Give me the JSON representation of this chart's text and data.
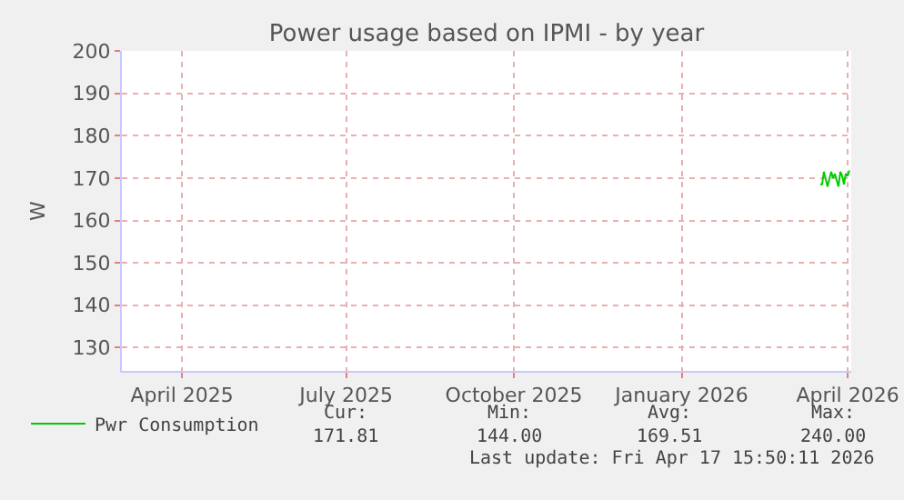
{
  "chart_data": {
    "type": "line",
    "title": "Power usage based on IPMI - by year",
    "ylabel": "W",
    "x": [
      "2026-04-01",
      "2026-04-02",
      "2026-04-03",
      "2026-04-05",
      "2026-04-07",
      "2026-04-08",
      "2026-04-09",
      "2026-04-11",
      "2026-04-12",
      "2026-04-13",
      "2026-04-14",
      "2026-04-15",
      "2026-04-16",
      "2026-04-17"
    ],
    "series": [
      {
        "name": "Pwr Consumption",
        "color": "#00cc00",
        "values": [
          168.5,
          168.5,
          171.5,
          168,
          171.5,
          170,
          171,
          168,
          171.5,
          170.5,
          168.5,
          171,
          170.5,
          171.8
        ]
      }
    ],
    "xlim": [
      "2025-03-14",
      "2026-04-18"
    ],
    "xticks": [
      {
        "value": "2025-04-16",
        "label": "April 2025"
      },
      {
        "value": "2025-07-15",
        "label": "July 2025"
      },
      {
        "value": "2025-10-15",
        "label": "October 2025"
      },
      {
        "value": "2026-01-15",
        "label": "January 2026"
      },
      {
        "value": "2026-04-16",
        "label": "April 2026"
      }
    ],
    "ylim": [
      124.5,
      200
    ],
    "yticks": [
      130,
      140,
      150,
      160,
      170,
      180,
      190,
      200
    ],
    "grid": true,
    "legend": "bottom left",
    "marker": "none",
    "line_style": "solid",
    "annotations": [
      "Cur:",
      "171.81",
      "Min:",
      "144.00",
      "Avg:",
      "169.51",
      "Max:",
      "240.00",
      "Last update: Fri Apr 17 15:50:11 2026"
    ]
  }
}
